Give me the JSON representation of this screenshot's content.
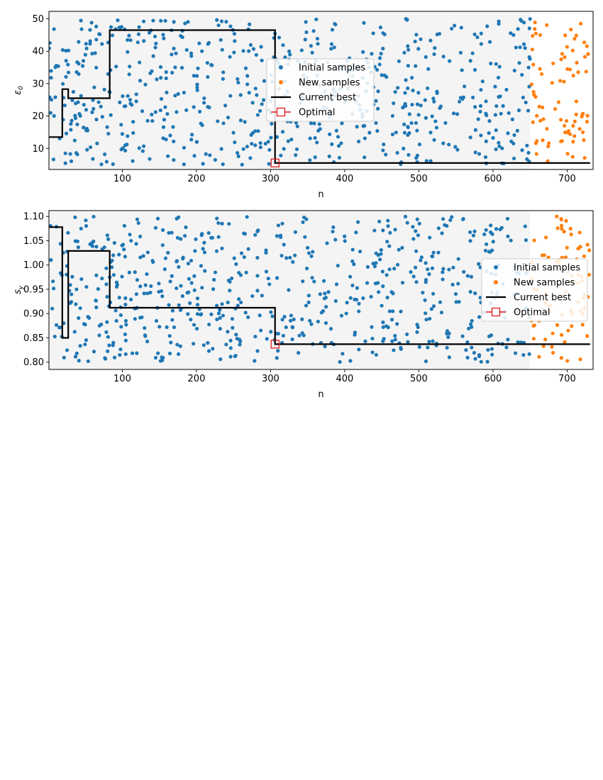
{
  "chart_data": [
    {
      "type": "scatter",
      "xlabel": "n",
      "ylabel": "ε",
      "ylabel_sub": "0",
      "xlim": [
        1,
        735
      ],
      "ylim": [
        3.5,
        52.3
      ],
      "xticks": [
        100,
        200,
        300,
        400,
        500,
        600,
        700
      ],
      "yticks": [
        10,
        20,
        30,
        40,
        50
      ],
      "shaded_region": [
        1,
        650
      ],
      "legend_position": "center",
      "series": [
        {
          "name": "Initial samples",
          "color": "#1f77b4",
          "x_range": [
            1,
            650
          ],
          "count": 650,
          "y_range": [
            5,
            50
          ]
        },
        {
          "name": "New samples",
          "color": "#ff7f0e",
          "x_range": [
            651,
            730
          ],
          "count": 80,
          "y_range": [
            6,
            50
          ]
        },
        {
          "name": "Current best",
          "color": "#000000",
          "points": [
            [
              1,
              13.5
            ],
            [
              19,
              13.5
            ],
            [
              19,
              28.3
            ],
            [
              27,
              28.3
            ],
            [
              27,
              25.5
            ],
            [
              83,
              25.5
            ],
            [
              83,
              46.5
            ],
            [
              306,
              46.5
            ],
            [
              306,
              5.5
            ],
            [
              731,
              5.5
            ]
          ]
        },
        {
          "name": "Optimal",
          "color": "#e31a1c",
          "x": [
            306
          ],
          "y": [
            5.5
          ]
        }
      ]
    },
    {
      "type": "scatter",
      "xlabel": "n",
      "ylabel": "s",
      "ylabel_sub": "y",
      "xlim": [
        1,
        735
      ],
      "ylim": [
        0.785,
        1.112
      ],
      "xticks": [
        100,
        200,
        300,
        400,
        500,
        600,
        700
      ],
      "yticks": [
        0.8,
        0.85,
        0.9,
        0.95,
        1.0,
        1.05,
        1.1
      ],
      "ytick_labels": [
        "0.80",
        "0.85",
        "0.90",
        "0.95",
        "1.00",
        "1.05",
        "1.10"
      ],
      "shaded_region": [
        1,
        650
      ],
      "legend_position": "center right",
      "series": [
        {
          "name": "Initial samples",
          "color": "#1f77b4",
          "x_range": [
            1,
            650
          ],
          "count": 650,
          "y_range": [
            0.8,
            1.1
          ]
        },
        {
          "name": "New samples",
          "color": "#ff7f0e",
          "x_range": [
            651,
            730
          ],
          "count": 80,
          "y_range": [
            0.8,
            1.1
          ]
        },
        {
          "name": "Current best",
          "color": "#000000",
          "points": [
            [
              1,
              1.078
            ],
            [
              19,
              1.078
            ],
            [
              19,
              0.85
            ],
            [
              27,
              0.85
            ],
            [
              27,
              1.029
            ],
            [
              83,
              1.029
            ],
            [
              83,
              0.912
            ],
            [
              306,
              0.912
            ],
            [
              306,
              0.837
            ],
            [
              731,
              0.837
            ]
          ]
        },
        {
          "name": "Optimal",
          "color": "#e31a1c",
          "x": [
            306
          ],
          "y": [
            0.837
          ]
        }
      ]
    }
  ]
}
